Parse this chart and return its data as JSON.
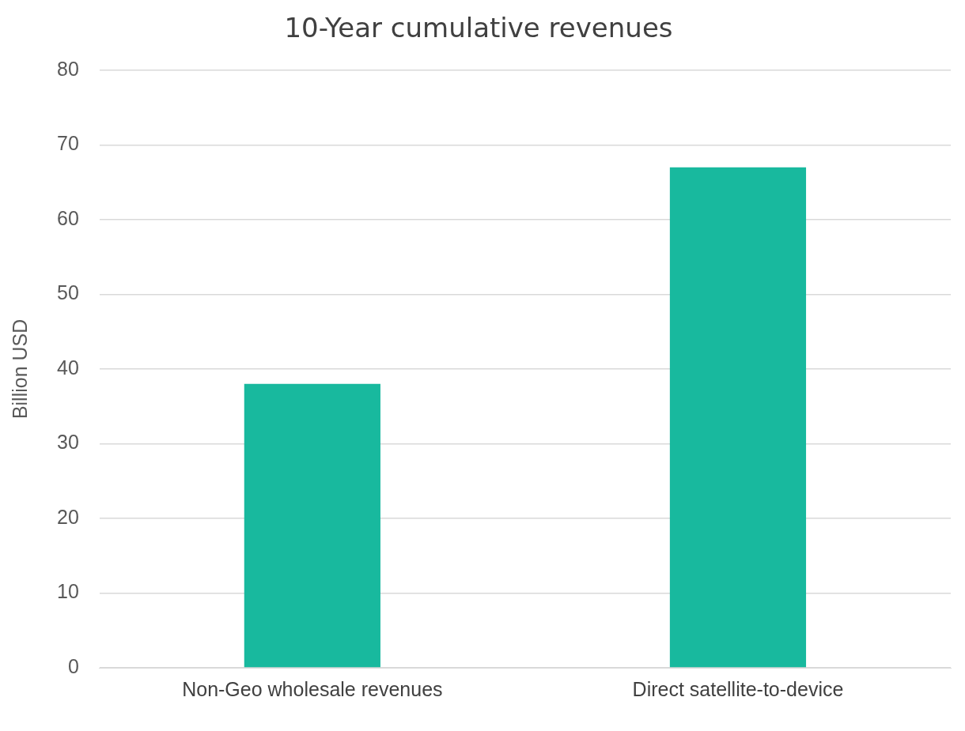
{
  "chart_data": {
    "type": "bar",
    "title": "10-Year cumulative revenues",
    "ylabel": "Billion USD",
    "categories": [
      "Non-Geo wholesale revenues",
      "Direct satellite-to-device"
    ],
    "values": [
      38,
      67
    ],
    "color": "#18b99e",
    "ylim": [
      0,
      80
    ],
    "yticks": [
      0,
      10,
      20,
      30,
      40,
      50,
      60,
      70,
      80
    ],
    "grid": "y",
    "legend": false
  }
}
